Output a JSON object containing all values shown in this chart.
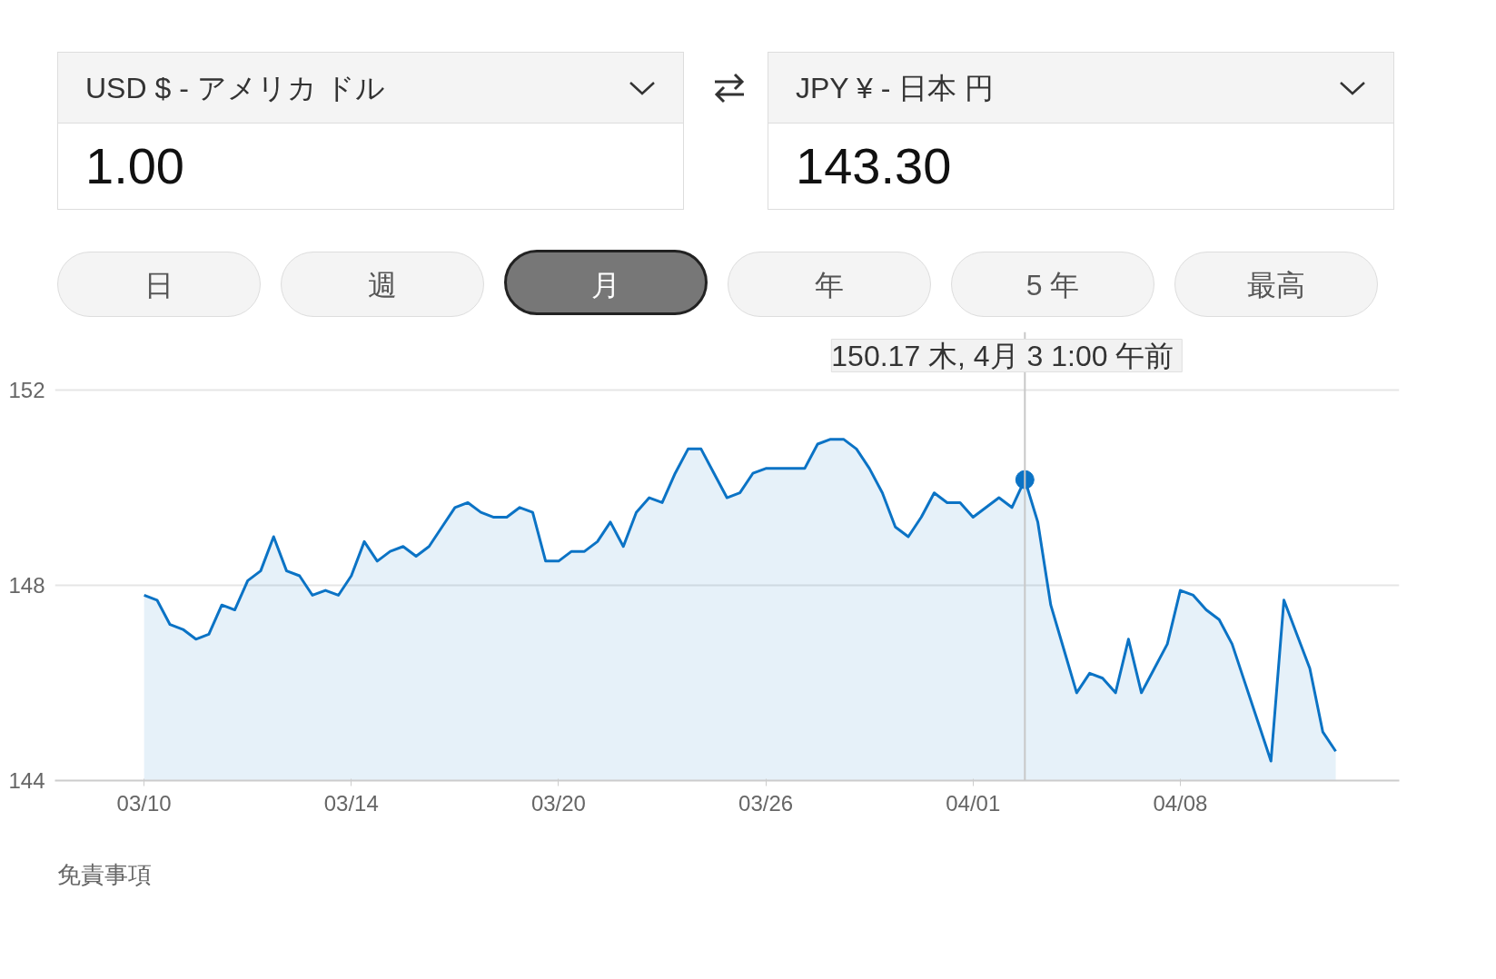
{
  "chart_data": {
    "type": "area",
    "annotations": [
      "USD $ - アメリカ ドル",
      "1.00",
      "JPY ¥ - 日本 円",
      "143.30",
      "日",
      "週",
      "月",
      "年",
      "5 年",
      "最高",
      "150.17  木, 4月 3 1:00 午前",
      "免責事項"
    ],
    "categories": [
      "03/10",
      null,
      null,
      null,
      null,
      null,
      null,
      null,
      null,
      null,
      null,
      null,
      null,
      null,
      null,
      null,
      "03/14",
      null,
      null,
      null,
      null,
      null,
      null,
      null,
      null,
      null,
      null,
      null,
      null,
      null,
      null,
      null,
      "03/20",
      null,
      null,
      null,
      null,
      null,
      null,
      null,
      null,
      null,
      null,
      null,
      null,
      null,
      null,
      null,
      "03/26",
      null,
      null,
      null,
      null,
      null,
      null,
      null,
      null,
      null,
      null,
      null,
      null,
      null,
      null,
      null,
      "04/01",
      null,
      null,
      null,
      null,
      null,
      null,
      null,
      null,
      null,
      null,
      null,
      null,
      null,
      null,
      null,
      "04/08",
      null,
      null,
      null,
      null,
      null,
      null,
      null,
      null,
      null,
      null,
      null,
      null
    ],
    "series": [
      {
        "color": "#0b73c5",
        "values": [
          147.8,
          147.7,
          147.2,
          147.1,
          146.9,
          147.0,
          147.6,
          147.5,
          148.1,
          148.3,
          149.0,
          148.3,
          148.2,
          147.8,
          147.9,
          147.8,
          148.2,
          148.9,
          148.5,
          148.7,
          148.8,
          148.6,
          148.8,
          149.2,
          149.6,
          149.7,
          149.5,
          149.4,
          149.4,
          149.6,
          149.5,
          148.5,
          148.5,
          148.7,
          148.7,
          148.9,
          149.3,
          148.8,
          149.5,
          149.8,
          149.7,
          150.3,
          150.8,
          150.8,
          150.3,
          149.8,
          149.9,
          150.3,
          150.4,
          150.4,
          150.4,
          150.4,
          150.9,
          151.0,
          151.0,
          150.8,
          150.4,
          149.9,
          149.2,
          149.0,
          149.4,
          149.9,
          149.7,
          149.7,
          149.4,
          149.6,
          149.8,
          149.6,
          150.17,
          149.3,
          147.6,
          146.7,
          145.8,
          146.2,
          146.1,
          145.8,
          146.9,
          145.8,
          146.3,
          146.8,
          147.9,
          147.8,
          147.5,
          147.3,
          146.8,
          146.0,
          145.2,
          144.4,
          147.7,
          147.0,
          146.3,
          145.0,
          144.6
        ]
      }
    ],
    "ylim": [
      144,
      153.2
    ],
    "yticks": [
      144,
      148,
      152
    ],
    "grid": "y"
  }
}
